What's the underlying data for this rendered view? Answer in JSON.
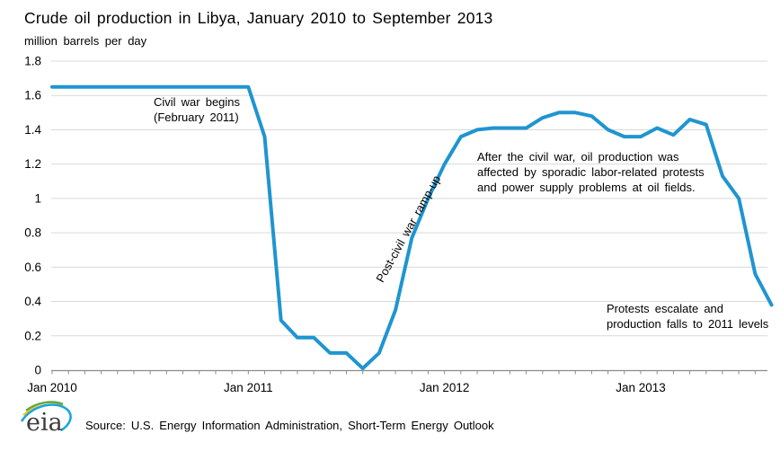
{
  "chart_data": {
    "type": "line",
    "title": "Crude oil production in Libya, January 2010 to September 2013",
    "units_label": "million barrels per day",
    "xlabel": "",
    "ylabel": "million barrels per day",
    "ylim": [
      0,
      1.8
    ],
    "grid": "horizontal",
    "legend": "none",
    "line_color": "#1f95d0",
    "grid_color": "#d9d9d9",
    "axis_color": "#8c8c8c",
    "text_color": "#000000",
    "months": [
      "Jan 2010",
      "Feb 2010",
      "Mar 2010",
      "Apr 2010",
      "May 2010",
      "Jun 2010",
      "Jul 2010",
      "Aug 2010",
      "Sep 2010",
      "Oct 2010",
      "Nov 2010",
      "Dec 2010",
      "Jan 2011",
      "Feb 2011",
      "Mar 2011",
      "Apr 2011",
      "May 2011",
      "Jun 2011",
      "Jul 2011",
      "Aug 2011",
      "Sep 2011",
      "Oct 2011",
      "Nov 2011",
      "Dec 2011",
      "Jan 2012",
      "Feb 2012",
      "Mar 2012",
      "Apr 2012",
      "May 2012",
      "Jun 2012",
      "Jul 2012",
      "Aug 2012",
      "Sep 2012",
      "Oct 2012",
      "Nov 2012",
      "Dec 2012",
      "Jan 2013",
      "Feb 2013",
      "Mar 2013",
      "Apr 2013",
      "May 2013",
      "Jun 2013",
      "Jul 2013",
      "Aug 2013",
      "Sep 2013"
    ],
    "values": [
      1.65,
      1.65,
      1.65,
      1.65,
      1.65,
      1.65,
      1.65,
      1.65,
      1.65,
      1.65,
      1.65,
      1.65,
      1.65,
      1.36,
      0.29,
      0.19,
      0.19,
      0.1,
      0.1,
      0.01,
      0.1,
      0.35,
      0.77,
      1.0,
      1.2,
      1.36,
      1.4,
      1.41,
      1.41,
      1.41,
      1.47,
      1.5,
      1.5,
      1.48,
      1.4,
      1.36,
      1.36,
      1.41,
      1.37,
      1.46,
      1.43,
      1.13,
      1.0,
      0.56,
      0.38
    ],
    "series_name": "Crude oil production",
    "xticks": [
      {
        "month": 0,
        "label": "Jan 2010"
      },
      {
        "month": 12,
        "label": "Jan 2011"
      },
      {
        "month": 24,
        "label": "Jan 2012"
      },
      {
        "month": 36,
        "label": "Jan 2013"
      }
    ],
    "yticks": [
      "1.8",
      "1.6",
      "1.4",
      "1.2",
      "1",
      "0.8",
      "0.6",
      "0.4",
      "0.2",
      "0"
    ],
    "annotations": {
      "civil_war": {
        "lines": [
          "Civil war begins",
          "(February 2011)"
        ]
      },
      "ramp_up": {
        "text": "Post-civil war ramp-up"
      },
      "after_war": {
        "text": "After the civil war, oil production was affected by sporadic labor-related protests and power supply problems at oil fields."
      },
      "protests": {
        "lines": [
          "Protests escalate and",
          "production falls to 2011 levels"
        ]
      }
    }
  },
  "footer": {
    "logo_text": "eia",
    "source": "Source: U.S. Energy Information Administration, Short-Term Energy Outlook"
  }
}
